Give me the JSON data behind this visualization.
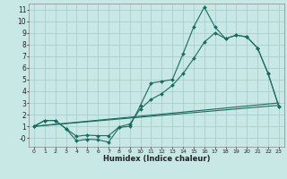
{
  "xlabel": "Humidex (Indice chaleur)",
  "bg_color": "#c8e8e5",
  "grid_color": "#a8cece",
  "line_color": "#1a6b5e",
  "xlim": [
    -0.5,
    23.5
  ],
  "ylim": [
    -0.75,
    11.5
  ],
  "xticks": [
    0,
    1,
    2,
    3,
    4,
    5,
    6,
    7,
    8,
    9,
    10,
    11,
    12,
    13,
    14,
    15,
    16,
    17,
    18,
    19,
    20,
    21,
    22,
    23
  ],
  "yticks": [
    0,
    1,
    2,
    3,
    4,
    5,
    6,
    7,
    8,
    9,
    10,
    11
  ],
  "ytick_labels": [
    "-0",
    "1",
    "2",
    "3",
    "4",
    "5",
    "6",
    "7",
    "8",
    "9",
    "10",
    "11"
  ],
  "series1_x": [
    0,
    1,
    2,
    3,
    4,
    5,
    6,
    7,
    8,
    9,
    10,
    11,
    12,
    13,
    14,
    15,
    16,
    17,
    18,
    19,
    20,
    21,
    22,
    23
  ],
  "series1_y": [
    1.0,
    1.5,
    1.5,
    0.8,
    -0.25,
    -0.1,
    -0.15,
    -0.35,
    0.9,
    1.0,
    2.8,
    4.7,
    4.85,
    5.0,
    7.2,
    9.5,
    11.2,
    9.5,
    8.5,
    8.8,
    8.65,
    7.7,
    5.5,
    2.7
  ],
  "series2_x": [
    0,
    1,
    2,
    3,
    4,
    5,
    6,
    7,
    8,
    9,
    10,
    11,
    12,
    13,
    14,
    15,
    16,
    17,
    18,
    19,
    20,
    21,
    22,
    23
  ],
  "series2_y": [
    1.0,
    1.5,
    1.5,
    0.8,
    0.15,
    0.25,
    0.2,
    0.2,
    0.95,
    1.2,
    2.5,
    3.3,
    3.8,
    4.5,
    5.5,
    6.8,
    8.2,
    9.0,
    8.5,
    8.8,
    8.65,
    7.7,
    5.5,
    2.7
  ],
  "line1_x": [
    0,
    23
  ],
  "line1_y": [
    1.0,
    2.8
  ],
  "line2_x": [
    0,
    23
  ],
  "line2_y": [
    1.0,
    3.0
  ]
}
